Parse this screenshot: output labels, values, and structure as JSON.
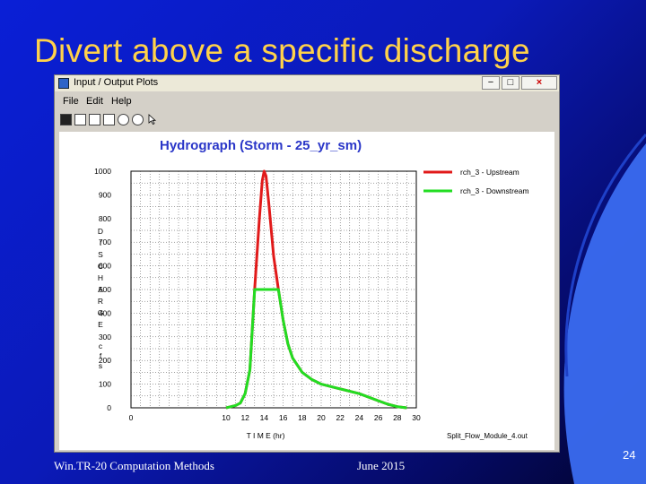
{
  "slide": {
    "title": "Divert above a specific discharge",
    "footer_left": "Win.TR-20 Computation Methods",
    "footer_mid": "June 2015",
    "page_number": "24",
    "colors": {
      "title": "#ffd24a",
      "background": "#0a1fd6",
      "accent": "#3a6cf0"
    }
  },
  "window": {
    "title": "Input / Output Plots",
    "menu": [
      "File",
      "Edit",
      "Help"
    ],
    "toolbar_icons": [
      "save-icon",
      "copy-icon",
      "print-icon",
      "print-preview-icon",
      "zoom-icon",
      "zoom-out-icon",
      "cursor-icon"
    ],
    "controls": {
      "minimize": "−",
      "maximize": "□",
      "close": "×"
    }
  },
  "chart_data": {
    "type": "line",
    "title": "Hydrograph (Storm - 25_yr_sm)",
    "xlabel": "T I M E (hr)",
    "ylabel": "D I S C H A R G E   c f s",
    "xlim": [
      0,
      30
    ],
    "ylim": [
      0,
      1000
    ],
    "xticks": [
      0,
      10,
      12,
      14,
      16,
      18,
      20,
      22,
      24,
      26,
      28,
      30
    ],
    "yticks": [
      0,
      100,
      200,
      300,
      400,
      500,
      600,
      700,
      800,
      900,
      1000
    ],
    "grid": true,
    "legend_position": "top-right",
    "footnote": "Split_Flow_Module_4.out",
    "series": [
      {
        "name": "rch_3 - Upstream",
        "color": "#e11a1a",
        "x": [
          10,
          11,
          11.5,
          12,
          12.5,
          13,
          13.5,
          13.8,
          14,
          14.2,
          14.5,
          15,
          15.5,
          16,
          16.5,
          17,
          18,
          19,
          20,
          22,
          24,
          26,
          27,
          28,
          29
        ],
        "y": [
          0,
          10,
          20,
          60,
          160,
          500,
          800,
          960,
          1000,
          980,
          860,
          640,
          500,
          370,
          270,
          210,
          150,
          120,
          100,
          80,
          60,
          30,
          15,
          5,
          0
        ]
      },
      {
        "name": "rch_3 - Downstream",
        "color": "#22dd22",
        "x": [
          10,
          11,
          11.5,
          12,
          12.5,
          13,
          13.5,
          14,
          15,
          15.5,
          16,
          16.5,
          17,
          18,
          19,
          20,
          22,
          24,
          26,
          27,
          28,
          29
        ],
        "y": [
          0,
          10,
          20,
          60,
          160,
          500,
          500,
          500,
          500,
          500,
          370,
          270,
          210,
          150,
          120,
          100,
          80,
          60,
          30,
          15,
          5,
          0
        ]
      }
    ]
  }
}
